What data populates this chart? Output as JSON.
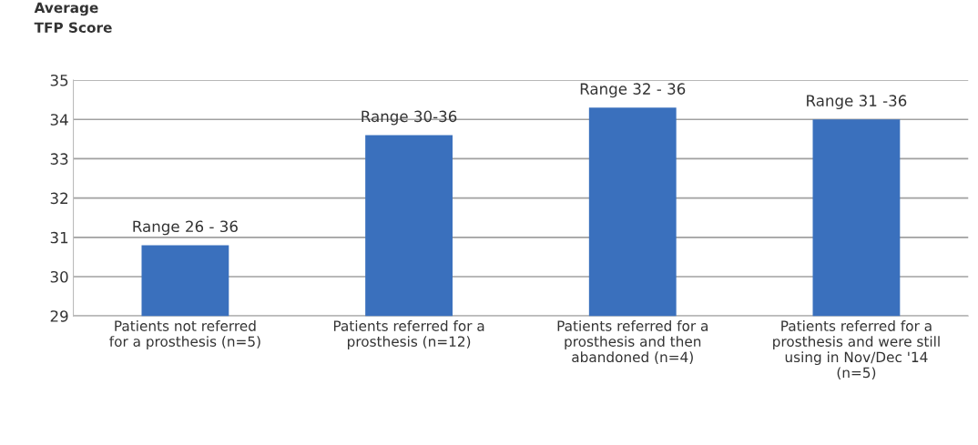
{
  "chart_data": {
    "type": "bar",
    "ylabel": "Average\nTFP Score",
    "categories": [
      "Patients not referred\nfor a prosthesis (n=5)",
      "Patients referred for a\nprosthesis (n=12)",
      "Patients referred for a\nprosthesis and then\nabandoned (n=4)",
      "Patients referred for a\nprosthesis and were still\nusing in Nov/Dec '14\n(n=5)"
    ],
    "values": [
      30.8,
      33.6,
      34.3,
      34.0
    ],
    "color": "#3a70bd",
    "ylim": [
      29,
      35
    ],
    "yticks": [
      29,
      30,
      31,
      32,
      33,
      34,
      35
    ],
    "grid": "y",
    "annotations": [
      {
        "text": "Range 26 - 36",
        "x": "Patients not referred\nfor a prosthesis (n=5)",
        "y": 30.8
      },
      {
        "text": "Range 30-36",
        "x": "Patients referred for a\nprosthesis (n=12)",
        "y": 33.6
      },
      {
        "text": "Range 32 - 36",
        "x": "Patients referred for a\nprosthesis and then\nabandoned (n=4)",
        "y": 34.3
      },
      {
        "text": "Range 31 -36",
        "x": "Patients referred for a\nprosthesis and were still\nusing in Nov/Dec '14\n(n=5)",
        "y": 34.0
      }
    ]
  }
}
